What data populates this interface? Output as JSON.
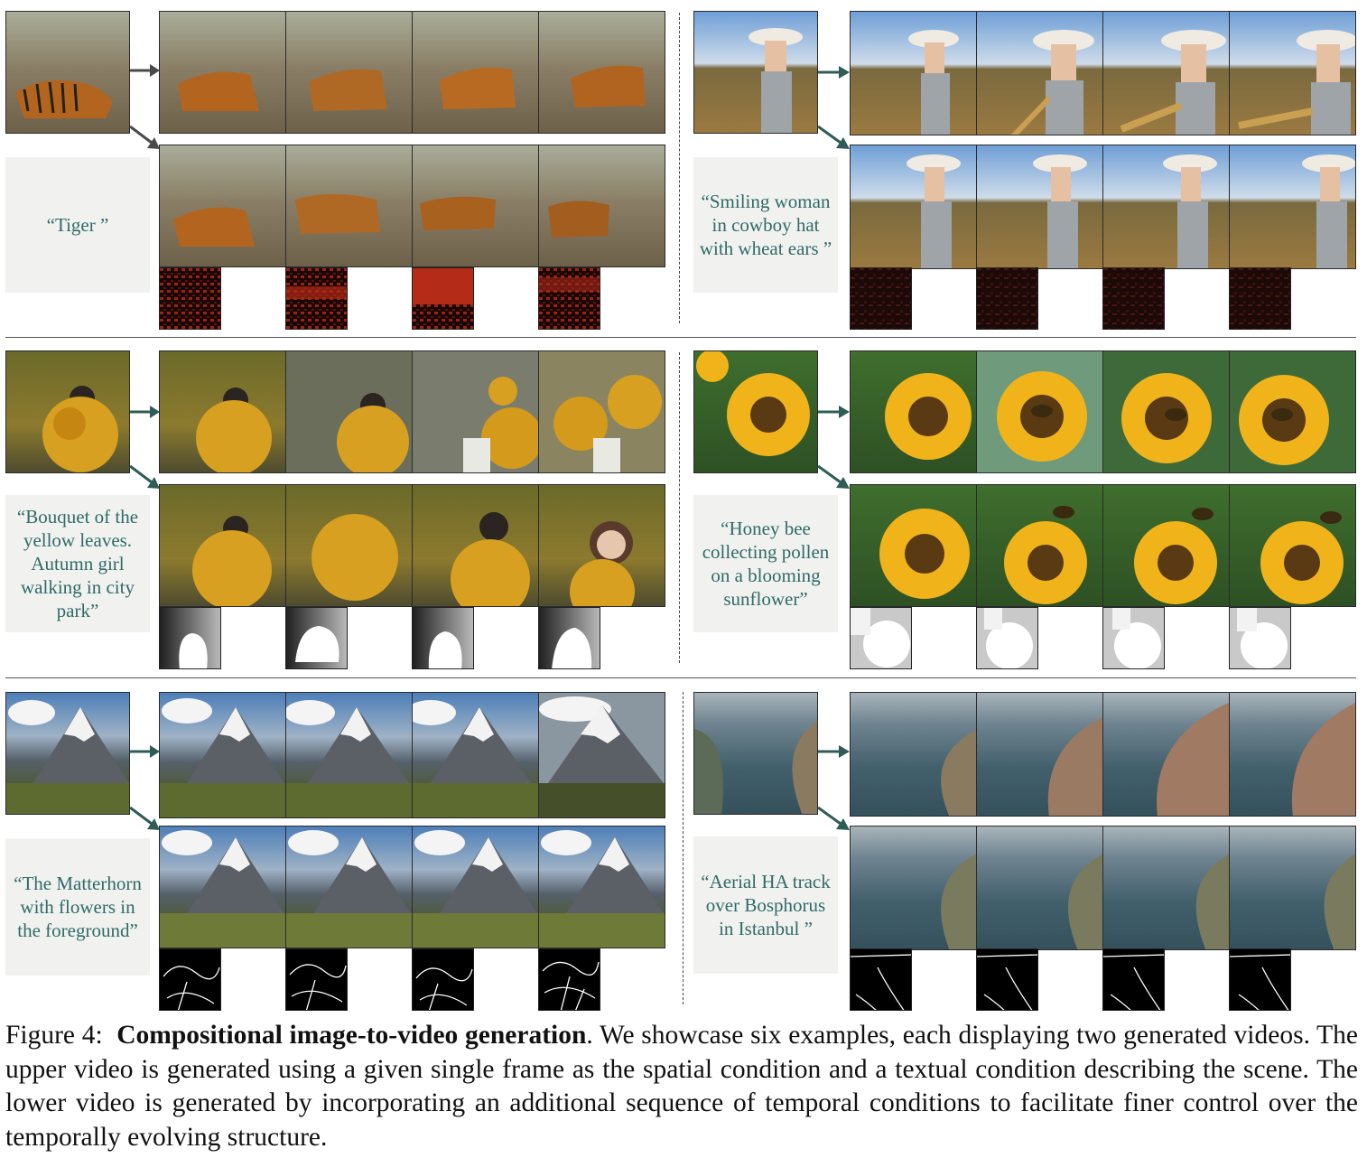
{
  "figure": {
    "label": "Figure 4:",
    "title": "Compositional image-to-video generation",
    "body": ". We showcase six examples, each displaying two generated videos. The upper video is generated using a given single frame as the spatial condition and a textual condition describing the scene. The lower video is generated by incorporating an additional sequence of temporal conditions to facilitate finer control over the temporally evolving structure."
  },
  "examples": [
    {
      "id": "tiger",
      "prompt": "“Tiger ”",
      "condition_type": "motion-vectors"
    },
    {
      "id": "cowboy",
      "prompt": "“Smiling woman in cowboy hat with wheat ears ”",
      "condition_type": "motion-vectors"
    },
    {
      "id": "leaves",
      "prompt": "“Bouquet of the yellow leaves. Autumn girl walking in city park”",
      "condition_type": "depth"
    },
    {
      "id": "sunflower",
      "prompt": "“Honey bee collecting pollen on a blooming sunflower”",
      "condition_type": "depth"
    },
    {
      "id": "matterhorn",
      "prompt": "“The Matterhorn with flowers in the foreground”",
      "condition_type": "sketch"
    },
    {
      "id": "bosphorus",
      "prompt": "“Aerial HA track over Bosphorus in Istanbul ”",
      "condition_type": "sketch"
    }
  ]
}
